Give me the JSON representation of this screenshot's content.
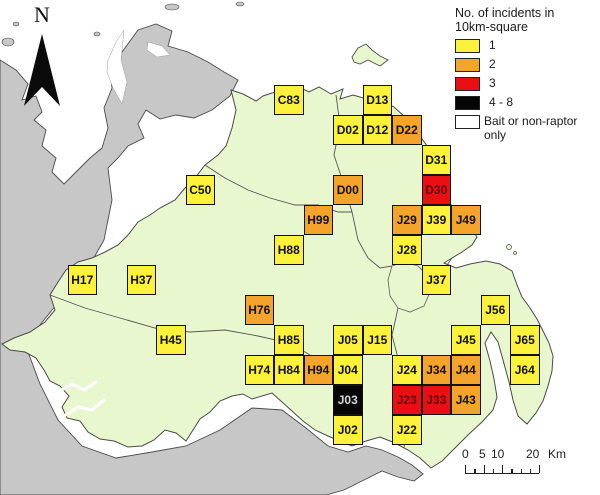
{
  "north": {
    "label": "N"
  },
  "legend": {
    "title_line1": "No. of incidents in",
    "title_line2": "10km-square",
    "items": [
      {
        "key": "1",
        "label": "1",
        "color": "#FDF23B",
        "hatch": false
      },
      {
        "key": "2",
        "label": "2",
        "color": "#F4A42B",
        "hatch": false
      },
      {
        "key": "3",
        "label": "3",
        "color": "#E90F15",
        "hatch": false
      },
      {
        "key": "4-8",
        "label": "4 - 8",
        "color": "#060606",
        "hatch": false
      },
      {
        "key": "bait",
        "label": "Bait or non-raptor only",
        "color": "#FFFFFF",
        "hatch": true
      }
    ]
  },
  "scalebar": {
    "tick_labels": [
      "0",
      "5",
      "10",
      "20"
    ],
    "unit": "Km"
  },
  "map": {
    "sea_color": "#FFFFFF",
    "land_color": "#E9F7CF",
    "outside_land_color": "#C7C7C7",
    "text_color_default": "#101010",
    "text_color_on_black": "#D6D6D6",
    "text_color_on_red": "#5A0606",
    "squares": [
      {
        "code": "C83",
        "col": 8,
        "row": 13,
        "incidents": "1",
        "bait_only_hatch": false
      },
      {
        "code": "D13",
        "col": 11,
        "row": 13,
        "incidents": "1",
        "bait_only_hatch": true
      },
      {
        "code": "D02",
        "col": 10,
        "row": 12,
        "incidents": "1",
        "bait_only_hatch": true
      },
      {
        "code": "D12",
        "col": 11,
        "row": 12,
        "incidents": "1",
        "bait_only_hatch": false
      },
      {
        "code": "D22",
        "col": 12,
        "row": 12,
        "incidents": "2",
        "bait_only_hatch": false
      },
      {
        "code": "D31",
        "col": 13,
        "row": 11,
        "incidents": "1",
        "bait_only_hatch": false
      },
      {
        "code": "C50",
        "col": 5,
        "row": 10,
        "incidents": "1",
        "bait_only_hatch": false
      },
      {
        "code": "D30",
        "col": 13,
        "row": 10,
        "incidents": "3",
        "bait_only_hatch": false
      },
      {
        "code": "D00",
        "col": 10,
        "row": 10,
        "incidents": "2",
        "bait_only_hatch": true
      },
      {
        "code": "H99",
        "col": 9,
        "row": 9,
        "incidents": "2",
        "bait_only_hatch": false
      },
      {
        "code": "J29",
        "col": 12,
        "row": 9,
        "incidents": "2",
        "bait_only_hatch": false
      },
      {
        "code": "J39",
        "col": 13,
        "row": 9,
        "incidents": "1",
        "bait_only_hatch": false
      },
      {
        "code": "J49",
        "col": 14,
        "row": 9,
        "incidents": "2",
        "bait_only_hatch": false
      },
      {
        "code": "H88",
        "col": 8,
        "row": 8,
        "incidents": "1",
        "bait_only_hatch": false
      },
      {
        "code": "J28",
        "col": 12,
        "row": 8,
        "incidents": "1",
        "bait_only_hatch": false
      },
      {
        "code": "H17",
        "col": 1,
        "row": 7,
        "incidents": "1",
        "bait_only_hatch": false
      },
      {
        "code": "H37",
        "col": 3,
        "row": 7,
        "incidents": "1",
        "bait_only_hatch": true
      },
      {
        "code": "J37",
        "col": 13,
        "row": 7,
        "incidents": "1",
        "bait_only_hatch": false
      },
      {
        "code": "H76",
        "col": 7,
        "row": 6,
        "incidents": "2",
        "bait_only_hatch": false
      },
      {
        "code": "J56",
        "col": 15,
        "row": 6,
        "incidents": "1",
        "bait_only_hatch": false
      },
      {
        "code": "H45",
        "col": 4,
        "row": 5,
        "incidents": "1",
        "bait_only_hatch": false
      },
      {
        "code": "H85",
        "col": 8,
        "row": 5,
        "incidents": "1",
        "bait_only_hatch": true
      },
      {
        "code": "J05",
        "col": 10,
        "row": 5,
        "incidents": "1",
        "bait_only_hatch": true
      },
      {
        "code": "J15",
        "col": 11,
        "row": 5,
        "incidents": "1",
        "bait_only_hatch": false
      },
      {
        "code": "J45",
        "col": 14,
        "row": 5,
        "incidents": "1",
        "bait_only_hatch": false
      },
      {
        "code": "J65",
        "col": 16,
        "row": 5,
        "incidents": "1",
        "bait_only_hatch": false
      },
      {
        "code": "H74",
        "col": 7,
        "row": 4,
        "incidents": "1",
        "bait_only_hatch": false
      },
      {
        "code": "H84",
        "col": 8,
        "row": 4,
        "incidents": "1",
        "bait_only_hatch": true
      },
      {
        "code": "H94",
        "col": 9,
        "row": 4,
        "incidents": "2",
        "bait_only_hatch": false
      },
      {
        "code": "J04",
        "col": 10,
        "row": 4,
        "incidents": "1",
        "bait_only_hatch": false
      },
      {
        "code": "J24",
        "col": 12,
        "row": 4,
        "incidents": "1",
        "bait_only_hatch": false
      },
      {
        "code": "J34",
        "col": 13,
        "row": 4,
        "incidents": "2",
        "bait_only_hatch": false
      },
      {
        "code": "J44",
        "col": 14,
        "row": 4,
        "incidents": "2",
        "bait_only_hatch": false
      },
      {
        "code": "J64",
        "col": 16,
        "row": 4,
        "incidents": "1",
        "bait_only_hatch": true
      },
      {
        "code": "J03",
        "col": 10,
        "row": 3,
        "incidents": "4-8",
        "bait_only_hatch": false
      },
      {
        "code": "J23",
        "col": 12,
        "row": 3,
        "incidents": "3",
        "bait_only_hatch": false
      },
      {
        "code": "J33",
        "col": 13,
        "row": 3,
        "incidents": "3",
        "bait_only_hatch": false
      },
      {
        "code": "J43",
        "col": 14,
        "row": 3,
        "incidents": "2",
        "bait_only_hatch": false
      },
      {
        "code": "J02",
        "col": 10,
        "row": 2,
        "incidents": "1",
        "bait_only_hatch": false
      },
      {
        "code": "J22",
        "col": 12,
        "row": 2,
        "incidents": "1",
        "bait_only_hatch": false
      }
    ]
  }
}
